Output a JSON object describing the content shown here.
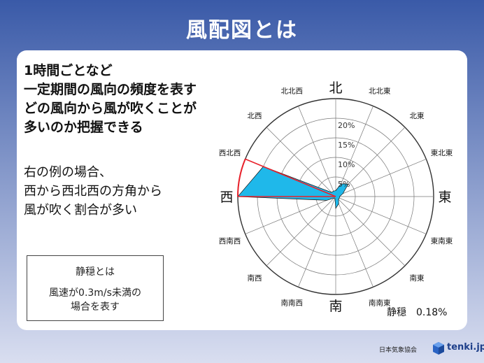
{
  "title": "風配図とは",
  "lead_lines": [
    "1時間ごとなど",
    "一定期間の風向の頻度を表す",
    "どの風向から風が吹くことが",
    "多いのか把握できる"
  ],
  "example_lines": [
    "右の例の場合、",
    "西から西北西の方角から",
    "風が吹く割合が多い"
  ],
  "calm_box": {
    "title": "静穏とは",
    "line1": "風速が0.3m/s未満の",
    "line2": "場合を表す"
  },
  "calm_readout": "静穏　0.18%",
  "footer": {
    "org": "日本気象協会",
    "brand": "tenki.jp"
  },
  "colors": {
    "fill": "#1fb8ea",
    "highlight": "#e8202a",
    "grid": "#333333"
  },
  "chart_data": {
    "type": "radar",
    "directions": [
      "北",
      "北北東",
      "北東",
      "東北東",
      "東",
      "東南東",
      "南東",
      "南南東",
      "南",
      "南南西",
      "南西",
      "西南西",
      "西",
      "西北西",
      "北西",
      "北北西"
    ],
    "labels": {
      "北": "北",
      "北北東": "北北東",
      "北東": "北東",
      "東北東": "東北東",
      "東": "東",
      "東南東": "東南東",
      "南東": "南東",
      "南南東": "南南東",
      "南": "南",
      "南南西": "南南西",
      "南西": "南西",
      "西南西": "西南西",
      "西": "西",
      "西北西": "西北西",
      "北西": "北西",
      "北北西": "北北西"
    },
    "values": [
      1.5,
      3.5,
      4.5,
      2.0,
      1.0,
      1.0,
      1.0,
      2.0,
      3.0,
      0.5,
      0.5,
      2.5,
      25,
      20,
      1.5,
      1.5
    ],
    "ticks": [
      "5%",
      "10%",
      "15%",
      "20%"
    ],
    "tick_values": [
      5,
      10,
      15,
      20
    ],
    "rmax": 25,
    "highlight_direction": "西北西"
  }
}
